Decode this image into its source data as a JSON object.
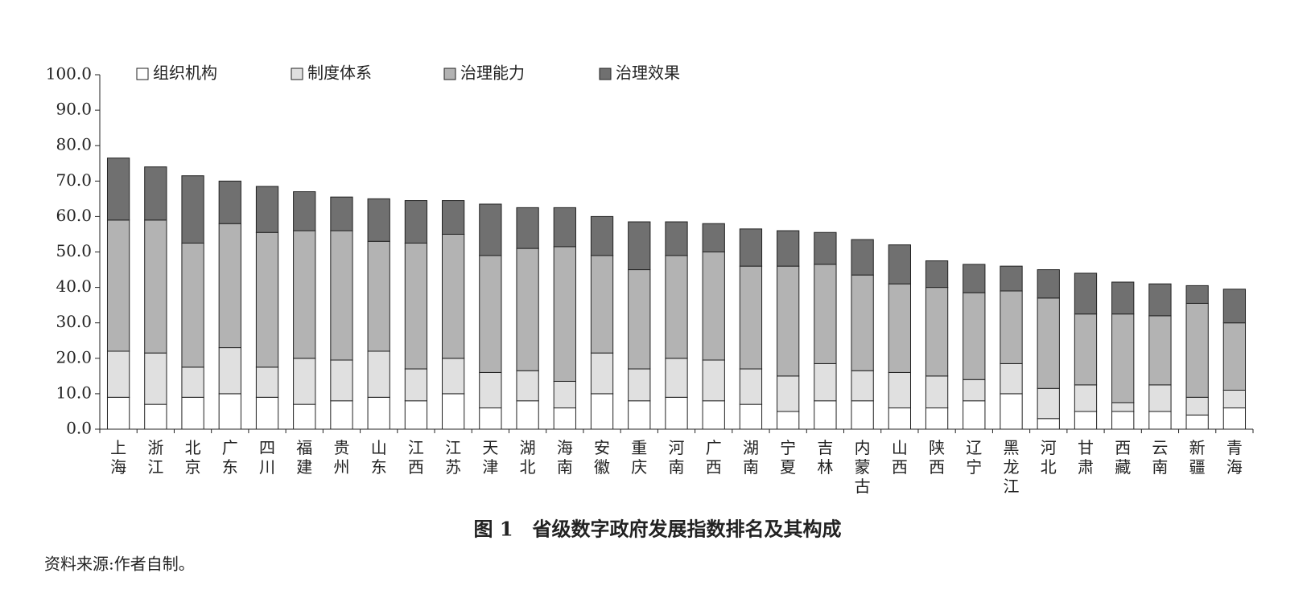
{
  "chart_data": {
    "type": "stacked_bar",
    "title": "图 1　省级数字政府发展指数排名及其构成",
    "source": "资料来源:作者自制。",
    "categories": [
      "上海",
      "浙江",
      "北京",
      "广东",
      "四川",
      "福建",
      "贵州",
      "山东",
      "江西",
      "江苏",
      "天津",
      "湖北",
      "海南",
      "安徽",
      "重庆",
      "河南",
      "广西",
      "湖南",
      "宁夏",
      "吉林",
      "内蒙古",
      "山西",
      "陕西",
      "辽宁",
      "黑龙江",
      "河北",
      "甘肃",
      "西藏",
      "云南",
      "新疆",
      "青海"
    ],
    "series": [
      {
        "name": "组织机构",
        "color": "#ffffff",
        "values": [
          9,
          7,
          9,
          10,
          9,
          7,
          8,
          9,
          8,
          10,
          6,
          8,
          6,
          10,
          8,
          9,
          8,
          7,
          5,
          8,
          8,
          6,
          6,
          8,
          10,
          3,
          5,
          5,
          5,
          4,
          6
        ]
      },
      {
        "name": "制度体系",
        "color": "#e0e0e0",
        "values": [
          13,
          14.5,
          8.5,
          13,
          8.5,
          13,
          11.5,
          13,
          9,
          10,
          10,
          8.5,
          7.5,
          11.5,
          9,
          11,
          11.5,
          10,
          10,
          10.5,
          8.5,
          10,
          9,
          6,
          8.5,
          8.5,
          7.5,
          2.5,
          7.5,
          5,
          5
        ]
      },
      {
        "name": "治理能力",
        "color": "#b3b3b3",
        "values": [
          37,
          37.5,
          35,
          35,
          38,
          36,
          36.5,
          31,
          35.5,
          35,
          33,
          34.5,
          38,
          27.5,
          28,
          29,
          30.5,
          29,
          31,
          28,
          27,
          25,
          25,
          24.5,
          20.5,
          25.5,
          20,
          25,
          19.5,
          26.5,
          19
        ]
      },
      {
        "name": "治理效果",
        "color": "#707070",
        "values": [
          17.5,
          15,
          19,
          12,
          13,
          11,
          9.5,
          12,
          12,
          9.5,
          14.5,
          11.5,
          11,
          11,
          13.5,
          9.5,
          8,
          10.5,
          10,
          9,
          10,
          11,
          7.5,
          8,
          7,
          8,
          11.5,
          9,
          9,
          5,
          9.5
        ]
      }
    ],
    "ylim": [
      0,
      100
    ],
    "yticks": [
      {
        "value": 0,
        "label": "0.0"
      },
      {
        "value": 10,
        "label": "10.0"
      },
      {
        "value": 20,
        "label": "20.0"
      },
      {
        "value": 30,
        "label": "30.0"
      },
      {
        "value": 40,
        "label": "40.0"
      },
      {
        "value": 50,
        "label": "50.0"
      },
      {
        "value": 60,
        "label": "60.0"
      },
      {
        "value": 70,
        "label": "70.0"
      },
      {
        "value": 80,
        "label": "80.0"
      },
      {
        "value": 90,
        "label": "90.0"
      },
      {
        "value": 100,
        "label": "100.0"
      }
    ],
    "legend": "top"
  }
}
